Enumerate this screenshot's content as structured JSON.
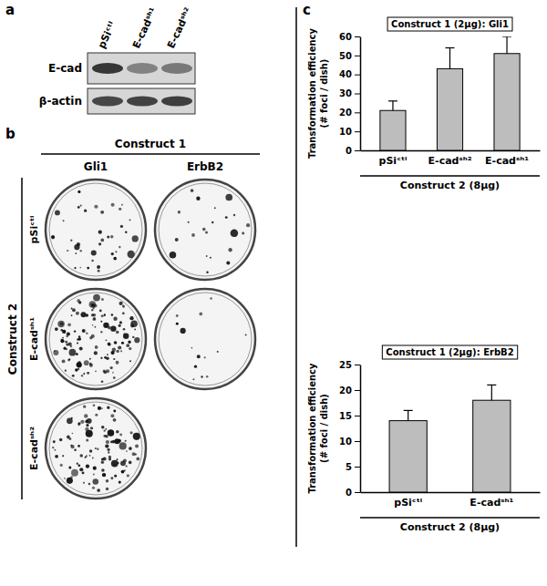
{
  "panels": [
    "a",
    "b",
    "c"
  ],
  "blot": {
    "lanes": [
      "pSiᶜᵗˡ",
      "E-cadˢʰ¹",
      "E-cadˢʰ²"
    ],
    "rows": [
      "E-cad",
      "β-actin"
    ]
  },
  "plates": {
    "title": "Construct 1",
    "columns": [
      "Gli1",
      "ErbB2"
    ],
    "row_title": "Construct 2",
    "rows": [
      "pSiᶜᵗˡ",
      "E-cadˢʰ¹",
      "E-cadˢʰ²"
    ]
  },
  "chart_data": [
    {
      "type": "bar",
      "title": "Construct 1 (2μg): Gli1",
      "y_label": [
        "Transformation efficiency",
        "(# foci / dish)"
      ],
      "x_label": "Construct 2 (8μg)",
      "categories": [
        "pSiᶜᵗˡ",
        "E-cadˢʰ²",
        "E-cadˢʰ¹"
      ],
      "values": [
        21,
        43,
        51
      ],
      "errors": [
        5,
        11,
        9
      ],
      "color": "#bdbdbd",
      "ylim": [
        0,
        60
      ],
      "yticks": [
        0,
        10,
        20,
        30,
        40,
        50,
        60
      ]
    },
    {
      "type": "bar",
      "title": "Construct 1 (2μg): ErbB2",
      "y_label": [
        "Transformation efficiency",
        "(# foci / dish)"
      ],
      "x_label": "Construct 2 (8μg)",
      "categories": [
        "pSiᶜᵗˡ",
        "E-cadˢʰ¹"
      ],
      "values": [
        14,
        18
      ],
      "errors": [
        2,
        3
      ],
      "color": "#bdbdbd",
      "ylim": [
        0,
        25
      ],
      "yticks": [
        0,
        5,
        10,
        15,
        20,
        25
      ]
    }
  ]
}
